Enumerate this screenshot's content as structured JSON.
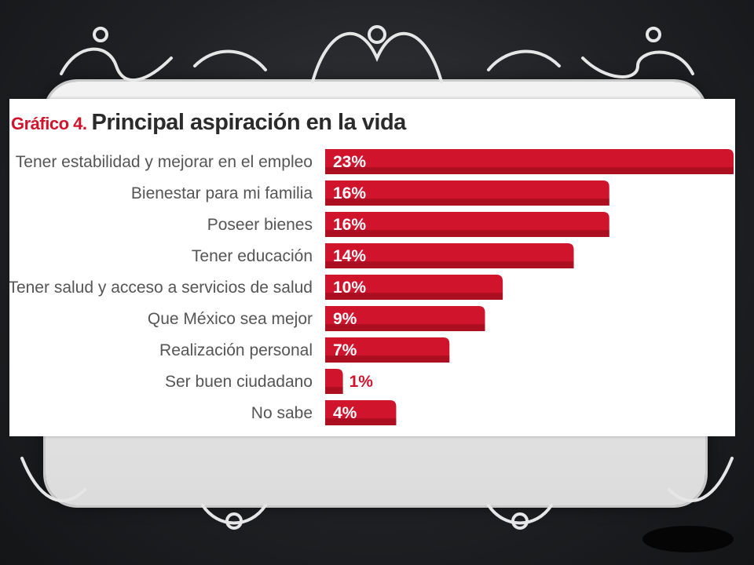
{
  "chart_data": {
    "type": "bar",
    "orientation": "horizontal",
    "title_tag": "Gráfico 4.",
    "title": "Principal aspiración en la vida",
    "categories": [
      "Tener estabilidad y mejorar en el empleo",
      "Bienestar para mi familia",
      "Poseer bienes",
      "Tener educación",
      "Tener salud y acceso a servicios de salud",
      "Que México sea mejor",
      "Realización personal",
      "Ser buen ciudadano",
      "No sabe"
    ],
    "values": [
      23,
      16,
      16,
      14,
      10,
      9,
      7,
      1,
      4
    ],
    "value_labels": [
      "23%",
      "16%",
      "16%",
      "14%",
      "10%",
      "9%",
      "7%",
      "1%",
      "4%"
    ],
    "unit": "%",
    "xlim": [
      0,
      23
    ],
    "grid": false,
    "legend": "none",
    "colors": {
      "bar": "#d0142c",
      "bar_dark": "#8e0a1c",
      "title_tag": "#d0142c",
      "label": "#555555",
      "bar_text": "#ffffff"
    }
  }
}
